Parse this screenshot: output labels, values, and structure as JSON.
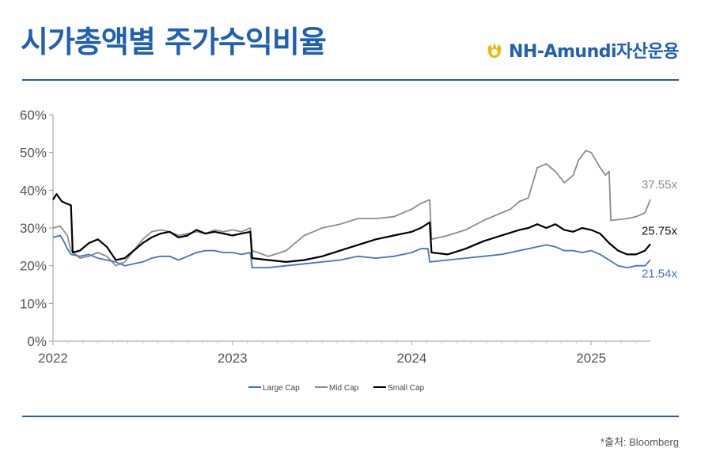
{
  "header": {
    "title": "시가총액별 주가수익비율",
    "logo_text": "NH-Amundi자산운용"
  },
  "footer": {
    "source": "*출처: Bloomberg"
  },
  "colors": {
    "accent": "#1f5fb4",
    "large_cap": "#4472c4",
    "mid_cap": "#8c8c8c",
    "small_cap": "#000000",
    "logo_mark": "#f2b705"
  },
  "chart_data": {
    "type": "line",
    "title": "",
    "xlabel": "",
    "ylabel": "",
    "ylim": [
      0,
      60
    ],
    "xlim": [
      2022.0,
      2025.33
    ],
    "y_ticks": [
      "0%",
      "10%",
      "20%",
      "30%",
      "40%",
      "50%",
      "60%"
    ],
    "x_ticks": [
      "2022",
      "2023",
      "2024",
      "2025"
    ],
    "grid": false,
    "legend": "bottom",
    "series": [
      {
        "name": "Large Cap",
        "end_label": "21.54x",
        "x": [
          2022.0,
          2022.04,
          2022.06,
          2022.08,
          2022.1,
          2022.15,
          2022.2,
          2022.25,
          2022.3,
          2022.35,
          2022.4,
          2022.45,
          2022.5,
          2022.55,
          2022.6,
          2022.65,
          2022.7,
          2022.75,
          2022.8,
          2022.85,
          2022.9,
          2022.95,
          2023.0,
          2023.05,
          2023.1,
          2023.11,
          2023.2,
          2023.3,
          2023.4,
          2023.5,
          2023.6,
          2023.7,
          2023.8,
          2023.9,
          2024.0,
          2024.05,
          2024.09,
          2024.1,
          2024.2,
          2024.3,
          2024.4,
          2024.5,
          2024.6,
          2024.7,
          2024.75,
          2024.8,
          2024.85,
          2024.9,
          2024.95,
          2025.0,
          2025.05,
          2025.1,
          2025.15,
          2025.2,
          2025.25,
          2025.3,
          2025.33
        ],
        "values": [
          27.5,
          28.0,
          26.5,
          24.5,
          23.0,
          22.5,
          23.0,
          22.0,
          21.5,
          21.0,
          20.0,
          20.5,
          21.0,
          22.0,
          22.5,
          22.5,
          21.5,
          22.5,
          23.5,
          24.0,
          24.0,
          23.5,
          23.5,
          23.0,
          23.5,
          19.5,
          19.5,
          20.0,
          20.5,
          21.0,
          21.5,
          22.5,
          22.0,
          22.5,
          23.5,
          24.5,
          24.5,
          21.0,
          21.5,
          22.0,
          22.5,
          23.0,
          24.0,
          25.0,
          25.5,
          25.0,
          24.0,
          24.0,
          23.5,
          24.0,
          23.0,
          21.5,
          20.0,
          19.5,
          20.0,
          20.0,
          21.54
        ]
      },
      {
        "name": "Mid Cap",
        "end_label": "37.55x",
        "x": [
          2022.0,
          2022.04,
          2022.08,
          2022.1,
          2022.15,
          2022.2,
          2022.25,
          2022.3,
          2022.35,
          2022.4,
          2022.45,
          2022.5,
          2022.55,
          2022.6,
          2022.65,
          2022.7,
          2022.75,
          2022.8,
          2022.85,
          2022.9,
          2022.95,
          2023.0,
          2023.05,
          2023.1,
          2023.11,
          2023.2,
          2023.3,
          2023.35,
          2023.4,
          2023.45,
          2023.5,
          2023.6,
          2023.7,
          2023.8,
          2023.9,
          2024.0,
          2024.05,
          2024.1,
          2024.11,
          2024.2,
          2024.3,
          2024.4,
          2024.5,
          2024.55,
          2024.6,
          2024.65,
          2024.7,
          2024.75,
          2024.8,
          2024.85,
          2024.9,
          2024.93,
          2024.97,
          2025.0,
          2025.05,
          2025.08,
          2025.1,
          2025.11,
          2025.2,
          2025.25,
          2025.3,
          2025.33
        ],
        "values": [
          30.0,
          30.5,
          28.0,
          24.0,
          22.0,
          22.5,
          23.5,
          22.5,
          20.0,
          21.0,
          24.0,
          27.0,
          29.0,
          29.5,
          29.0,
          28.0,
          28.5,
          29.0,
          28.5,
          29.5,
          29.0,
          29.5,
          29.0,
          30.0,
          24.0,
          22.5,
          24.0,
          26.0,
          28.0,
          29.0,
          30.0,
          31.0,
          32.5,
          32.5,
          33.0,
          35.0,
          36.5,
          37.5,
          27.0,
          28.0,
          29.5,
          32.0,
          34.0,
          35.0,
          37.0,
          38.0,
          46.0,
          47.0,
          45.0,
          42.0,
          44.0,
          48.0,
          50.5,
          50.0,
          46.0,
          44.0,
          45.0,
          32.0,
          32.5,
          33.0,
          34.0,
          37.55
        ]
      },
      {
        "name": "Small Cap",
        "end_label": "25.75x",
        "x": [
          2022.0,
          2022.02,
          2022.05,
          2022.1,
          2022.11,
          2022.15,
          2022.2,
          2022.25,
          2022.3,
          2022.35,
          2022.4,
          2022.45,
          2022.5,
          2022.55,
          2022.6,
          2022.65,
          2022.7,
          2022.75,
          2022.8,
          2022.85,
          2022.9,
          2022.95,
          2023.0,
          2023.05,
          2023.1,
          2023.11,
          2023.2,
          2023.3,
          2023.4,
          2023.5,
          2023.6,
          2023.7,
          2023.8,
          2023.9,
          2024.0,
          2024.05,
          2024.1,
          2024.11,
          2024.2,
          2024.3,
          2024.4,
          2024.5,
          2024.6,
          2024.65,
          2024.7,
          2024.75,
          2024.8,
          2024.85,
          2024.9,
          2024.95,
          2025.0,
          2025.05,
          2025.1,
          2025.15,
          2025.2,
          2025.25,
          2025.3,
          2025.33
        ],
        "values": [
          37.5,
          39.0,
          37.0,
          36.0,
          23.5,
          24.0,
          26.0,
          27.0,
          25.0,
          21.5,
          22.0,
          24.0,
          26.0,
          27.5,
          28.5,
          29.0,
          27.5,
          28.0,
          29.5,
          28.5,
          29.0,
          28.5,
          28.0,
          28.5,
          29.0,
          22.0,
          21.5,
          21.0,
          21.5,
          22.5,
          24.0,
          25.5,
          27.0,
          28.0,
          29.0,
          30.0,
          31.5,
          23.5,
          23.0,
          24.5,
          26.5,
          28.0,
          29.5,
          30.0,
          31.0,
          30.0,
          31.0,
          29.5,
          29.0,
          30.0,
          29.5,
          28.5,
          26.0,
          24.0,
          23.0,
          23.0,
          24.0,
          25.75
        ]
      }
    ]
  }
}
